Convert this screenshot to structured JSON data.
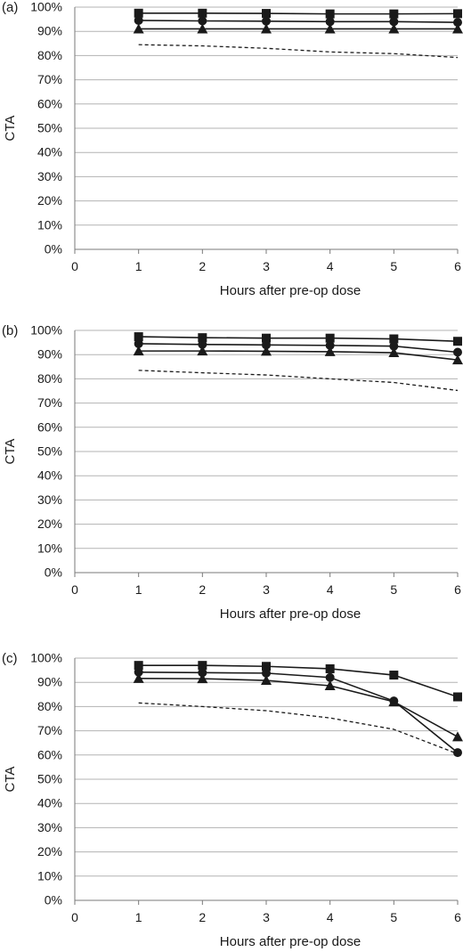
{
  "chart_data": [
    {
      "type": "line",
      "panel_label": "(a)",
      "xlabel": "Hours after pre-op dose",
      "ylabel": "CTA",
      "xlim": [
        0,
        6
      ],
      "ylim": [
        0,
        100
      ],
      "x_ticks": [
        "0",
        "1",
        "2",
        "3",
        "4",
        "5",
        "6"
      ],
      "y_ticks": [
        "0%",
        "10%",
        "20%",
        "30%",
        "40%",
        "50%",
        "60%",
        "70%",
        "80%",
        "90%",
        "100%"
      ],
      "grid": "horizontal",
      "x": [
        1,
        2,
        3,
        4,
        5,
        6
      ],
      "series": [
        {
          "marker": "square",
          "line": "solid",
          "color": "#1a1a1a",
          "values": [
            97.5,
            97.5,
            97.4,
            97.2,
            97.2,
            97.3
          ]
        },
        {
          "marker": "circle",
          "line": "solid",
          "color": "#1a1a1a",
          "values": [
            94.5,
            94.3,
            94.2,
            94.0,
            94.0,
            93.7
          ]
        },
        {
          "marker": "triangle",
          "line": "solid",
          "color": "#1a1a1a",
          "values": [
            91.0,
            91.0,
            91.0,
            91.0,
            91.0,
            91.0
          ]
        },
        {
          "marker": "none",
          "line": "dashed",
          "color": "#1a1a1a",
          "values": [
            84.5,
            84.0,
            83.0,
            81.5,
            80.8,
            79.2
          ]
        }
      ]
    },
    {
      "type": "line",
      "panel_label": "(b)",
      "xlabel": "Hours after pre-op dose",
      "ylabel": "CTA",
      "xlim": [
        0,
        6
      ],
      "ylim": [
        0,
        100
      ],
      "x_ticks": [
        "0",
        "1",
        "2",
        "3",
        "4",
        "5",
        "6"
      ],
      "y_ticks": [
        "0%",
        "10%",
        "20%",
        "30%",
        "40%",
        "50%",
        "60%",
        "70%",
        "80%",
        "90%",
        "100%"
      ],
      "grid": "horizontal",
      "x": [
        1,
        2,
        3,
        4,
        5,
        6
      ],
      "series": [
        {
          "marker": "square",
          "line": "solid",
          "color": "#1a1a1a",
          "values": [
            97.4,
            97.0,
            96.8,
            96.8,
            96.5,
            95.5
          ]
        },
        {
          "marker": "circle",
          "line": "solid",
          "color": "#1a1a1a",
          "values": [
            94.5,
            94.2,
            94.0,
            93.8,
            93.5,
            91.0
          ]
        },
        {
          "marker": "triangle",
          "line": "solid",
          "color": "#1a1a1a",
          "values": [
            91.5,
            91.5,
            91.4,
            91.2,
            90.8,
            87.8
          ]
        },
        {
          "marker": "none",
          "line": "dashed",
          "color": "#1a1a1a",
          "values": [
            83.5,
            82.5,
            81.6,
            80.0,
            78.5,
            75.2
          ]
        }
      ]
    },
    {
      "type": "line",
      "panel_label": "(c)",
      "xlabel": "Hours after pre-op dose",
      "ylabel": "CTA",
      "xlim": [
        0,
        6
      ],
      "ylim": [
        0,
        100
      ],
      "x_ticks": [
        "0",
        "1",
        "2",
        "3",
        "4",
        "5",
        "6"
      ],
      "y_ticks": [
        "0%",
        "10%",
        "20%",
        "30%",
        "40%",
        "50%",
        "60%",
        "70%",
        "80%",
        "90%",
        "100%"
      ],
      "grid": "horizontal",
      "x": [
        1,
        2,
        3,
        4,
        5,
        6
      ],
      "series": [
        {
          "marker": "square",
          "line": "solid",
          "color": "#1a1a1a",
          "values": [
            97.0,
            97.0,
            96.6,
            95.6,
            93.0,
            84.0
          ]
        },
        {
          "marker": "circle",
          "line": "solid",
          "color": "#1a1a1a",
          "values": [
            94.2,
            94.0,
            93.8,
            92.0,
            82.3,
            61.0
          ]
        },
        {
          "marker": "triangle",
          "line": "solid",
          "color": "#1a1a1a",
          "values": [
            91.6,
            91.5,
            90.8,
            88.6,
            82.0,
            67.5
          ]
        },
        {
          "marker": "none",
          "line": "dashed",
          "color": "#1a1a1a",
          "values": [
            81.5,
            80.0,
            78.3,
            75.3,
            70.6,
            60.5
          ]
        }
      ]
    }
  ]
}
